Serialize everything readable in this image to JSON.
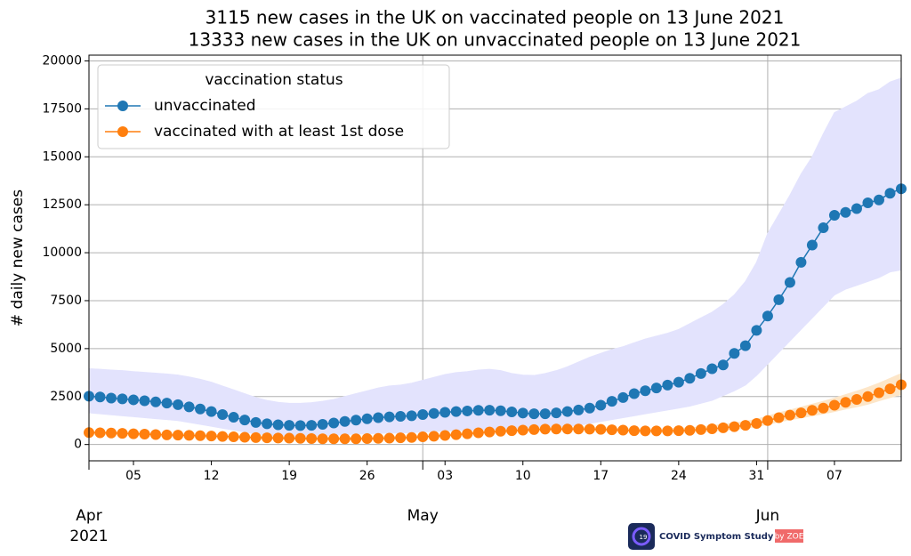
{
  "chart_data": {
    "type": "line",
    "title": "3115 new cases in the UK on vaccinated people on 13 June 2021",
    "subtitle": "13333 new cases in the UK on unvaccinated people on 13 June 2021",
    "ylabel": "# daily new cases",
    "legend_title": "vaccination status",
    "legend_position": "upper left",
    "grid": true,
    "x": [
      "2021-04-01",
      "2021-04-02",
      "2021-04-03",
      "2021-04-04",
      "2021-04-05",
      "2021-04-06",
      "2021-04-07",
      "2021-04-08",
      "2021-04-09",
      "2021-04-10",
      "2021-04-11",
      "2021-04-12",
      "2021-04-13",
      "2021-04-14",
      "2021-04-15",
      "2021-04-16",
      "2021-04-17",
      "2021-04-18",
      "2021-04-19",
      "2021-04-20",
      "2021-04-21",
      "2021-04-22",
      "2021-04-23",
      "2021-04-24",
      "2021-04-25",
      "2021-04-26",
      "2021-04-27",
      "2021-04-28",
      "2021-04-29",
      "2021-04-30",
      "2021-05-01",
      "2021-05-02",
      "2021-05-03",
      "2021-05-04",
      "2021-05-05",
      "2021-05-06",
      "2021-05-07",
      "2021-05-08",
      "2021-05-09",
      "2021-05-10",
      "2021-05-11",
      "2021-05-12",
      "2021-05-13",
      "2021-05-14",
      "2021-05-15",
      "2021-05-16",
      "2021-05-17",
      "2021-05-18",
      "2021-05-19",
      "2021-05-20",
      "2021-05-21",
      "2021-05-22",
      "2021-05-23",
      "2021-05-24",
      "2021-05-25",
      "2021-05-26",
      "2021-05-27",
      "2021-05-28",
      "2021-05-29",
      "2021-05-30",
      "2021-05-31",
      "2021-06-01",
      "2021-06-02",
      "2021-06-03",
      "2021-06-04",
      "2021-06-05",
      "2021-06-06",
      "2021-06-07",
      "2021-06-08",
      "2021-06-09",
      "2021-06-10",
      "2021-06-11",
      "2021-06-12",
      "2021-06-13"
    ],
    "xlim": [
      "2021-04-01",
      "2021-06-13"
    ],
    "xticks": [
      {
        "value": "2021-04-05",
        "label": "05"
      },
      {
        "value": "2021-04-12",
        "label": "12"
      },
      {
        "value": "2021-04-19",
        "label": "19"
      },
      {
        "value": "2021-04-26",
        "label": "26"
      },
      {
        "value": "2021-05-03",
        "label": "03"
      },
      {
        "value": "2021-05-10",
        "label": "10"
      },
      {
        "value": "2021-05-17",
        "label": "17"
      },
      {
        "value": "2021-05-24",
        "label": "24"
      },
      {
        "value": "2021-05-31",
        "label": "31"
      },
      {
        "value": "2021-06-07",
        "label": "07"
      }
    ],
    "xticks_major": [
      {
        "value": "2021-04-01",
        "label": "Apr"
      },
      {
        "value": "2021-05-01",
        "label": "May"
      },
      {
        "value": "2021-06-01",
        "label": "Jun"
      }
    ],
    "x_year_label": "2021",
    "ylim": [
      -850,
      20300
    ],
    "yticks": [
      0,
      2500,
      5000,
      7500,
      10000,
      12500,
      15000,
      17500,
      20000
    ],
    "series": [
      {
        "name": "unvaccinated",
        "color": "#1f77b4",
        "band_color": "#e3e3fd",
        "values": [
          2520,
          2480,
          2420,
          2380,
          2330,
          2280,
          2220,
          2160,
          2080,
          1960,
          1850,
          1720,
          1560,
          1420,
          1280,
          1150,
          1080,
          1030,
          1000,
          990,
          1000,
          1050,
          1120,
          1200,
          1270,
          1340,
          1400,
          1440,
          1470,
          1500,
          1560,
          1620,
          1680,
          1720,
          1750,
          1780,
          1790,
          1760,
          1700,
          1640,
          1600,
          1600,
          1650,
          1720,
          1800,
          1900,
          2050,
          2250,
          2450,
          2650,
          2800,
          2950,
          3100,
          3250,
          3450,
          3700,
          3950,
          4150,
          4750,
          5150,
          5950,
          6700,
          7550,
          8450,
          9500,
          10400,
          11300,
          11950,
          12100,
          12300,
          12600,
          12750,
          13100,
          13333
        ],
        "upper": [
          3950,
          3920,
          3880,
          3850,
          3800,
          3760,
          3720,
          3680,
          3620,
          3520,
          3400,
          3250,
          3050,
          2850,
          2650,
          2450,
          2300,
          2200,
          2150,
          2150,
          2180,
          2250,
          2350,
          2500,
          2650,
          2800,
          2950,
          3050,
          3100,
          3200,
          3350,
          3500,
          3650,
          3750,
          3800,
          3880,
          3920,
          3850,
          3700,
          3620,
          3600,
          3700,
          3850,
          4050,
          4300,
          4550,
          4750,
          4950,
          5100,
          5300,
          5500,
          5650,
          5800,
          6000,
          6300,
          6600,
          6900,
          7300,
          7800,
          8500,
          9500,
          11000,
          12000,
          13000,
          14100,
          15000,
          16200,
          17300,
          17600,
          17900,
          18300,
          18500,
          18900,
          19100
        ],
        "lower": [
          1650,
          1600,
          1550,
          1500,
          1450,
          1400,
          1350,
          1300,
          1250,
          1150,
          1050,
          950,
          850,
          750,
          650,
          550,
          500,
          450,
          420,
          400,
          420,
          450,
          480,
          510,
          540,
          560,
          580,
          600,
          600,
          620,
          650,
          680,
          700,
          720,
          740,
          760,
          780,
          800,
          820,
          850,
          880,
          900,
          920,
          960,
          1000,
          1100,
          1200,
          1300,
          1400,
          1500,
          1600,
          1700,
          1800,
          1900,
          2000,
          2150,
          2300,
          2550,
          2800,
          3100,
          3600,
          4200,
          4800,
          5400,
          6000,
          6600,
          7200,
          7800,
          8100,
          8300,
          8500,
          8700,
          9000,
          9100
        ]
      },
      {
        "name": "vaccinated with at least 1st dose",
        "color": "#ff7f0e",
        "band_color": "#fde6c8",
        "values": [
          620,
          610,
          600,
          580,
          560,
          540,
          520,
          500,
          490,
          480,
          460,
          440,
          420,
          400,
          380,
          360,
          350,
          340,
          330,
          320,
          310,
          300,
          300,
          300,
          300,
          310,
          320,
          330,
          350,
          370,
          400,
          430,
          470,
          510,
          560,
          610,
          650,
          690,
          720,
          750,
          780,
          800,
          810,
          810,
          810,
          800,
          790,
          770,
          750,
          720,
          710,
          710,
          710,
          720,
          740,
          780,
          820,
          870,
          930,
          1000,
          1100,
          1250,
          1400,
          1530,
          1650,
          1780,
          1900,
          2050,
          2200,
          2350,
          2500,
          2700,
          2900,
          3115
        ],
        "upper": [
          700,
          690,
          680,
          660,
          640,
          620,
          600,
          580,
          570,
          560,
          540,
          520,
          500,
          480,
          460,
          440,
          430,
          420,
          410,
          400,
          390,
          380,
          380,
          380,
          380,
          390,
          400,
          410,
          430,
          450,
          480,
          520,
          560,
          600,
          650,
          700,
          740,
          780,
          810,
          840,
          870,
          890,
          900,
          900,
          900,
          890,
          880,
          860,
          840,
          820,
          810,
          810,
          820,
          840,
          870,
          920,
          980,
          1050,
          1120,
          1200,
          1320,
          1480,
          1650,
          1800,
          1950,
          2100,
          2250,
          2420,
          2600,
          2780,
          2980,
          3200,
          3450,
          3700
        ],
        "lower": [
          540,
          530,
          520,
          500,
          480,
          460,
          440,
          420,
          410,
          400,
          380,
          360,
          340,
          320,
          300,
          290,
          280,
          270,
          260,
          250,
          240,
          230,
          230,
          230,
          230,
          240,
          250,
          260,
          280,
          300,
          330,
          360,
          400,
          440,
          480,
          530,
          570,
          610,
          640,
          670,
          700,
          720,
          730,
          730,
          730,
          720,
          710,
          690,
          670,
          640,
          620,
          620,
          620,
          630,
          640,
          670,
          700,
          740,
          790,
          850,
          930,
          1050,
          1180,
          1290,
          1390,
          1500,
          1600,
          1720,
          1850,
          1970,
          2100,
          2280,
          2450,
          2600
        ]
      }
    ],
    "logo": {
      "icon_text": "19",
      "text": "COVID Symptom Study",
      "by": "by ZOE"
    }
  }
}
